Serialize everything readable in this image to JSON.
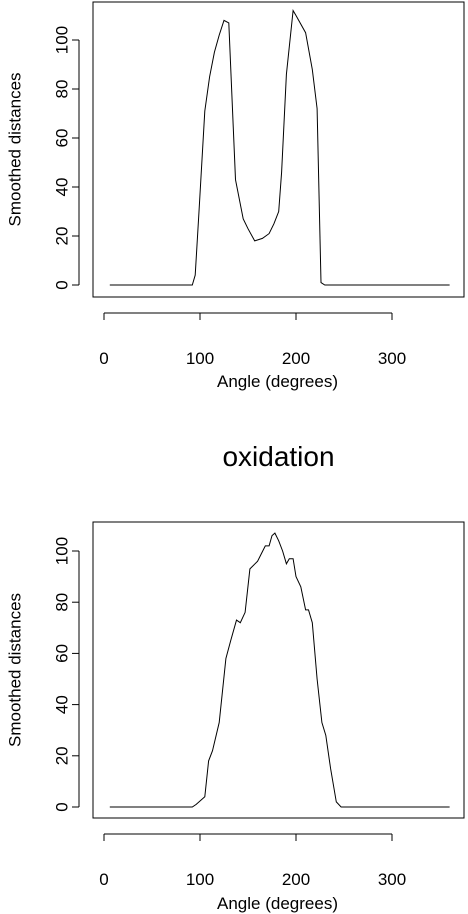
{
  "chart_data": [
    {
      "type": "line",
      "title": "",
      "xlabel": "Angle (degrees)",
      "ylabel": "Smoothed distances",
      "xlim": [
        0,
        360
      ],
      "ylim": [
        0,
        110
      ],
      "xticks": [
        0,
        100,
        200,
        300
      ],
      "yticks": [
        0,
        20,
        40,
        60,
        80,
        100
      ],
      "x": [
        6,
        20,
        40,
        60,
        80,
        92,
        95,
        99,
        105,
        110,
        115,
        120,
        125,
        130,
        137,
        145,
        150,
        157,
        165,
        172,
        177,
        182,
        185,
        190,
        197,
        200,
        210,
        217,
        222,
        226,
        230,
        240,
        260,
        300,
        330,
        360
      ],
      "y": [
        0,
        0,
        0,
        0,
        0,
        0,
        4,
        30,
        71,
        85,
        95,
        102,
        108,
        107,
        43,
        27,
        23,
        18,
        19,
        21,
        25,
        30,
        46,
        86,
        112,
        110,
        103,
        88,
        72,
        1,
        0,
        0,
        0,
        0,
        0,
        0
      ]
    },
    {
      "type": "line",
      "title": "oxidation",
      "xlabel": "Angle (degrees)",
      "ylabel": "Smoothed distances",
      "xlim": [
        0,
        360
      ],
      "ylim": [
        0,
        110
      ],
      "xticks": [
        0,
        100,
        200,
        300
      ],
      "yticks": [
        0,
        20,
        40,
        60,
        80,
        100
      ],
      "x": [
        6,
        20,
        40,
        60,
        80,
        92,
        96,
        105,
        109,
        113,
        120,
        127,
        132,
        138,
        142,
        147,
        152,
        160,
        164,
        168,
        172,
        175,
        178,
        182,
        186,
        190,
        193,
        197,
        200,
        205,
        210,
        213,
        217,
        222,
        227,
        231,
        236,
        242,
        247,
        252,
        260,
        300,
        330,
        360
      ],
      "y": [
        0,
        0,
        0,
        0,
        0,
        0,
        1,
        4,
        18,
        22,
        33,
        58,
        65,
        73,
        72,
        76,
        93,
        96,
        99,
        102,
        102,
        106,
        107,
        104,
        100,
        95,
        97,
        97,
        90,
        86,
        77,
        77,
        72,
        50,
        33,
        28,
        15,
        2,
        0,
        0,
        0,
        0,
        0,
        0
      ]
    }
  ]
}
